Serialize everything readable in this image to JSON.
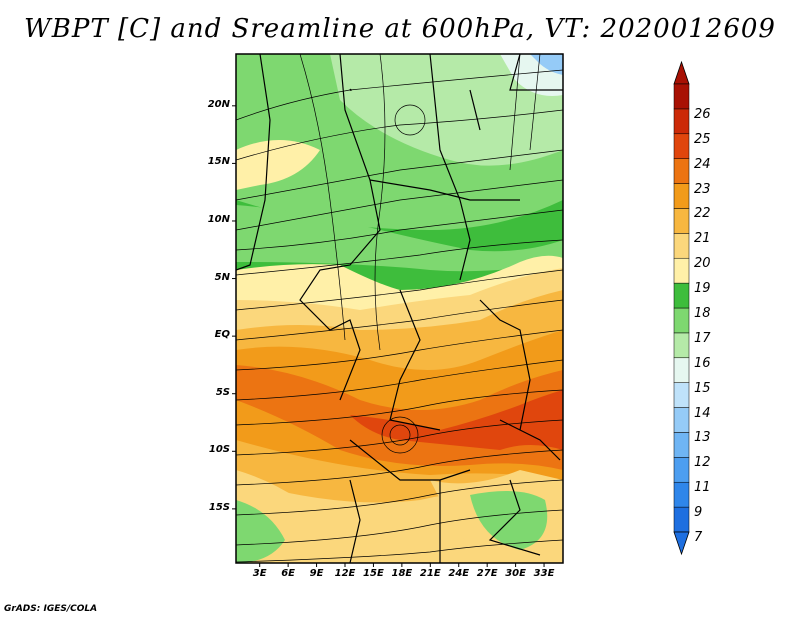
{
  "title": "WBPT [C] and Sreamline at 600hPa, VT: 2020012609",
  "credit": "GrADS: IGES/COLA",
  "map": {
    "lat_labels": [
      "20N",
      "15N",
      "10N",
      "5N",
      "EQ",
      "5S",
      "10S",
      "15S"
    ],
    "lat_values": [
      20,
      15,
      10,
      5,
      0,
      -5,
      -10,
      -15
    ],
    "lon_labels": [
      "3E",
      "6E",
      "9E",
      "12E",
      "15E",
      "18E",
      "21E",
      "24E",
      "27E",
      "30E",
      "33E"
    ],
    "lon_values": [
      3,
      6,
      9,
      12,
      15,
      18,
      21,
      24,
      27,
      30,
      33
    ],
    "lon_range": [
      0.5,
      35
    ],
    "lat_range": [
      -19.7,
      24.5
    ]
  },
  "colorbar": {
    "labels": [
      "7",
      "9",
      "11",
      "12",
      "13",
      "14",
      "15",
      "16",
      "17",
      "18",
      "19",
      "20",
      "21",
      "22",
      "23",
      "24",
      "25",
      "26"
    ],
    "colors": [
      "#1e6fe0",
      "#2f86ea",
      "#4d9ef0",
      "#6fb5f4",
      "#95cbf7",
      "#bfe2fa",
      "#e6f7f0",
      "#b5eaa8",
      "#7ed870",
      "#3ebd3c",
      "#fff0a8",
      "#fbd77c",
      "#f7b740",
      "#f29b1a",
      "#ec7412",
      "#e0460d",
      "#cc2a08",
      "#a81104"
    ]
  }
}
